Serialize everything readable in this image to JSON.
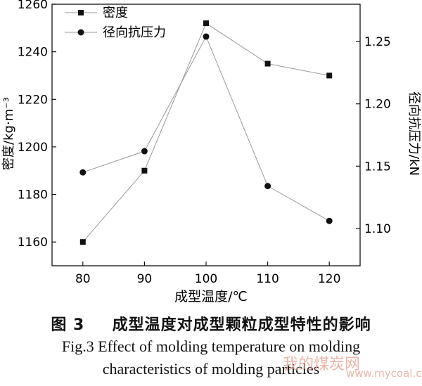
{
  "chart_data": {
    "type": "line",
    "categories": [
      "80",
      "90",
      "100",
      "110",
      "120"
    ],
    "x": [
      80,
      90,
      100,
      110,
      120
    ],
    "xlabel": "成型温度/℃",
    "ylabel_left": "密度/kg·m⁻³",
    "ylabel_right": "径向抗压力/kN",
    "ylim_left": [
      1150,
      1260
    ],
    "ylim_right": [
      1.07,
      1.28
    ],
    "yticks_left": [
      1160,
      1180,
      1200,
      1220,
      1240,
      1260
    ],
    "yticks_right": [
      1.1,
      1.15,
      1.2,
      1.25
    ],
    "legend_position": "top-left",
    "grid": false,
    "series": [
      {
        "name": "密度",
        "axis": "left",
        "marker": "square",
        "values": [
          1160,
          1190,
          1252,
          1235,
          1230
        ]
      },
      {
        "name": "径向抗压力",
        "axis": "right",
        "marker": "circle",
        "values": [
          1.145,
          1.162,
          1.254,
          1.134,
          1.106
        ]
      }
    ]
  },
  "caption": {
    "cn_label": "图 3",
    "cn_text": "成型温度对成型颗粒成型特性的影响",
    "en_line1": "Fig.3 Effect of molding temperature on molding",
    "en_line2": "characteristics of molding particles"
  },
  "watermark": {
    "text": "我的煤炭网",
    "url": "www.mycoal.cn"
  }
}
